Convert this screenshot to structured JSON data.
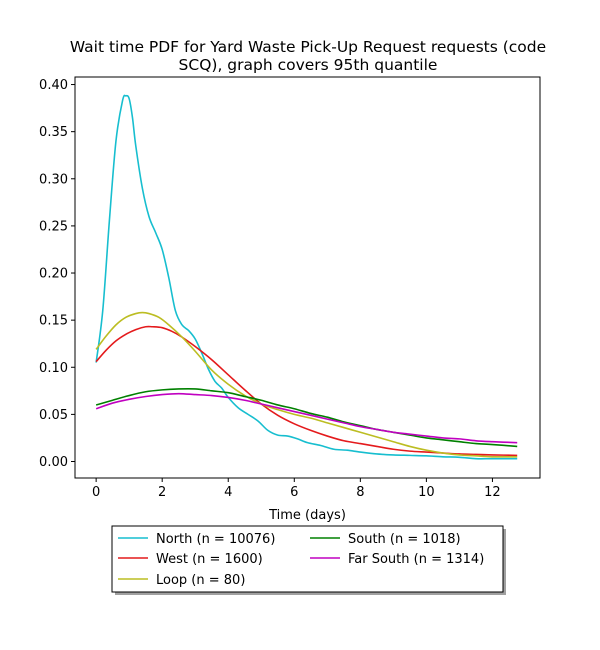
{
  "chart_data": {
    "type": "line",
    "title_lines": [
      "Wait time PDF for Yard Waste Pick-Up Request  requests (code",
      "SCQ), graph covers 95th quantile"
    ],
    "xlabel": "Time (days)",
    "ylabel": "",
    "xlim": [
      -0.64,
      13.44
    ],
    "ylim": [
      -0.0175,
      0.408
    ],
    "xticks": [
      0,
      2,
      4,
      6,
      8,
      10,
      12
    ],
    "yticks": [
      0.0,
      0.05,
      0.1,
      0.15,
      0.2,
      0.25,
      0.3,
      0.35,
      0.4
    ],
    "ytick_labels": [
      "0.00",
      "0.05",
      "0.10",
      "0.15",
      "0.20",
      "0.25",
      "0.30",
      "0.35",
      "0.40"
    ],
    "grid": false,
    "legend_placement": "below",
    "series": [
      {
        "name": "North (n = 10076)",
        "color": "#17becf",
        "x": [
          0,
          0.2,
          0.4,
          0.6,
          0.8,
          0.9,
          1.0,
          1.1,
          1.2,
          1.4,
          1.6,
          1.8,
          2.0,
          2.2,
          2.4,
          2.6,
          2.8,
          3.0,
          3.2,
          3.4,
          3.6,
          3.8,
          4.0,
          4.3,
          4.6,
          4.9,
          5.2,
          5.5,
          5.8,
          6.1,
          6.4,
          6.8,
          7.2,
          7.6,
          8.0,
          8.5,
          9.0,
          9.5,
          10.0,
          10.5,
          11.0,
          11.5,
          12.0,
          12.75
        ],
        "y": [
          0.105,
          0.16,
          0.255,
          0.34,
          0.383,
          0.388,
          0.385,
          0.365,
          0.335,
          0.29,
          0.26,
          0.243,
          0.225,
          0.195,
          0.16,
          0.145,
          0.139,
          0.13,
          0.115,
          0.098,
          0.085,
          0.078,
          0.068,
          0.057,
          0.05,
          0.043,
          0.033,
          0.028,
          0.027,
          0.024,
          0.02,
          0.017,
          0.013,
          0.012,
          0.01,
          0.008,
          0.007,
          0.0065,
          0.006,
          0.005,
          0.0045,
          0.003,
          0.003,
          0.003
        ]
      },
      {
        "name": "West (n = 1600)",
        "color": "#e41a1c",
        "x": [
          0,
          0.3,
          0.6,
          0.9,
          1.2,
          1.5,
          1.7,
          2.0,
          2.3,
          2.6,
          3.0,
          3.5,
          4.0,
          4.5,
          5.0,
          5.5,
          6.0,
          6.5,
          7.0,
          7.5,
          8.0,
          8.5,
          9.0,
          9.5,
          10.0,
          10.5,
          11.0,
          11.5,
          12.0,
          12.75
        ],
        "y": [
          0.106,
          0.118,
          0.128,
          0.135,
          0.14,
          0.143,
          0.143,
          0.142,
          0.138,
          0.132,
          0.122,
          0.108,
          0.092,
          0.076,
          0.061,
          0.049,
          0.04,
          0.033,
          0.027,
          0.022,
          0.019,
          0.016,
          0.013,
          0.011,
          0.01,
          0.009,
          0.008,
          0.0075,
          0.007,
          0.0065
        ]
      },
      {
        "name": "Loop (n = 80)",
        "color": "#bcbd22",
        "x": [
          0,
          0.3,
          0.6,
          0.9,
          1.2,
          1.4,
          1.6,
          1.9,
          2.2,
          2.6,
          3.0,
          3.5,
          4.0,
          4.5,
          5.0,
          5.5,
          6.0,
          6.5,
          7.0,
          7.5,
          8.0,
          8.5,
          9.0,
          9.5,
          10.0,
          10.5,
          11.0,
          11.5,
          12.0,
          12.75
        ],
        "y": [
          0.119,
          0.133,
          0.145,
          0.153,
          0.157,
          0.158,
          0.157,
          0.153,
          0.145,
          0.132,
          0.117,
          0.097,
          0.082,
          0.07,
          0.061,
          0.055,
          0.05,
          0.046,
          0.041,
          0.036,
          0.031,
          0.026,
          0.021,
          0.016,
          0.012,
          0.009,
          0.007,
          0.006,
          0.005,
          0.005
        ]
      },
      {
        "name": "South (n = 1018)",
        "color": "#008000",
        "x": [
          0,
          0.5,
          1.0,
          1.5,
          2.0,
          2.5,
          3.0,
          3.5,
          4.0,
          4.5,
          5.0,
          5.5,
          6.0,
          6.5,
          7.0,
          7.5,
          8.0,
          8.5,
          9.0,
          9.5,
          10.0,
          10.5,
          11.0,
          11.5,
          12.0,
          12.75
        ],
        "y": [
          0.06,
          0.065,
          0.07,
          0.074,
          0.076,
          0.077,
          0.077,
          0.075,
          0.073,
          0.069,
          0.065,
          0.06,
          0.056,
          0.051,
          0.047,
          0.042,
          0.038,
          0.034,
          0.031,
          0.028,
          0.025,
          0.023,
          0.021,
          0.019,
          0.018,
          0.016
        ]
      },
      {
        "name": "Far South (n = 1314)",
        "color": "#c000c0",
        "x": [
          0,
          0.5,
          1.0,
          1.5,
          2.0,
          2.5,
          3.0,
          3.5,
          4.0,
          4.5,
          5.0,
          5.5,
          6.0,
          6.5,
          7.0,
          7.5,
          8.0,
          8.5,
          9.0,
          9.5,
          10.0,
          10.5,
          11.0,
          11.5,
          12.0,
          12.75
        ],
        "y": [
          0.056,
          0.062,
          0.066,
          0.069,
          0.071,
          0.072,
          0.071,
          0.07,
          0.068,
          0.065,
          0.061,
          0.057,
          0.053,
          0.049,
          0.045,
          0.041,
          0.037,
          0.034,
          0.031,
          0.029,
          0.027,
          0.025,
          0.024,
          0.022,
          0.021,
          0.02
        ]
      }
    ]
  }
}
